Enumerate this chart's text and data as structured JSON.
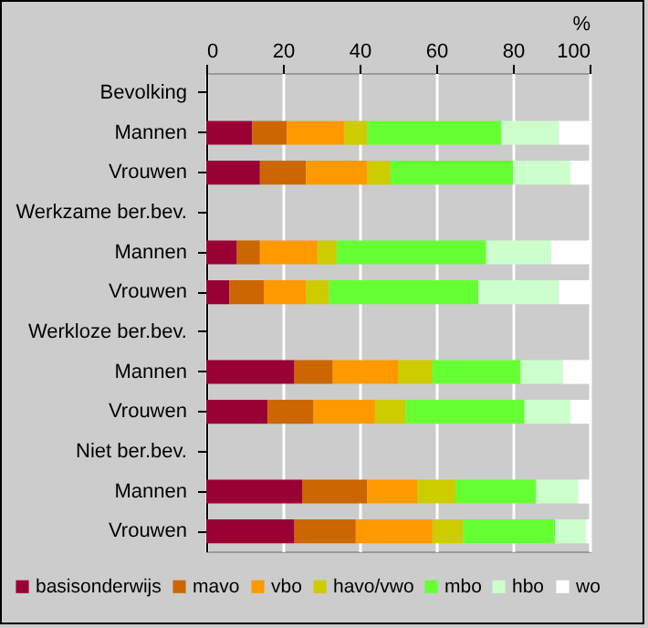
{
  "chart_data": {
    "type": "bar",
    "orientation": "horizontal",
    "stacked": true,
    "xlabel": "%",
    "categories": [
      "Bevolking",
      "Mannen",
      "Vrouwen",
      "Werkzame ber.bev.",
      "Mannen",
      "Vrouwen",
      "Werkloze ber.bev.",
      "Mannen",
      "Vrouwen",
      "Niet ber.bev.",
      "Mannen",
      "Vrouwen"
    ],
    "series": [
      {
        "name": "basisonderwijs",
        "color": "#990033",
        "values": [
          null,
          12,
          14,
          null,
          8,
          6,
          null,
          23,
          16,
          null,
          25,
          23
        ]
      },
      {
        "name": "mavo",
        "color": "#cc6600",
        "values": [
          null,
          9,
          12,
          null,
          6,
          9,
          null,
          10,
          12,
          null,
          17,
          16
        ]
      },
      {
        "name": "vbo",
        "color": "#ff9900",
        "values": [
          null,
          15,
          16,
          null,
          15,
          11,
          null,
          17,
          16,
          null,
          13,
          20
        ]
      },
      {
        "name": "havo/vwo",
        "color": "#cccc00",
        "values": [
          null,
          6,
          6,
          null,
          5,
          6,
          null,
          9,
          8,
          null,
          10,
          8
        ]
      },
      {
        "name": "mbo",
        "color": "#66ff33",
        "values": [
          null,
          35,
          32,
          null,
          39,
          39,
          null,
          23,
          31,
          null,
          21,
          24
        ]
      },
      {
        "name": "hbo",
        "color": "#ccffcc",
        "values": [
          null,
          15,
          15,
          null,
          17,
          21,
          null,
          11,
          12,
          null,
          11,
          8
        ]
      },
      {
        "name": "wo",
        "color": "#ffffff",
        "values": [
          null,
          8,
          5,
          null,
          10,
          8,
          null,
          7,
          5,
          null,
          3,
          1
        ]
      }
    ],
    "xlim": [
      0,
      100
    ],
    "xticks": [
      0,
      20,
      40,
      60,
      80,
      100
    ],
    "grid": "x",
    "legend": "bottom"
  }
}
